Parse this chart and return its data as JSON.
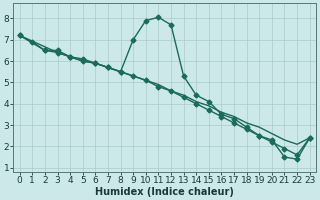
{
  "xlabel": "Humidex (Indice chaleur)",
  "bg_color": "#cce8e8",
  "grid_color": "#aacccc",
  "line_color": "#1a6b5a",
  "xlim": [
    -0.5,
    23.5
  ],
  "ylim": [
    0.8,
    8.7
  ],
  "yticks": [
    1,
    2,
    3,
    4,
    5,
    6,
    7,
    8
  ],
  "xticks": [
    0,
    1,
    2,
    3,
    4,
    5,
    6,
    7,
    8,
    9,
    10,
    11,
    12,
    13,
    14,
    15,
    16,
    17,
    18,
    19,
    20,
    21,
    22,
    23
  ],
  "series": [
    {
      "x": [
        0,
        1,
        2,
        3,
        4,
        5,
        6,
        7,
        8,
        9,
        10,
        11,
        12,
        13,
        14,
        15,
        16,
        17,
        18,
        19,
        20,
        21,
        22,
        23
      ],
      "y": [
        7.2,
        6.9,
        6.5,
        6.5,
        6.2,
        6.1,
        5.9,
        5.7,
        5.5,
        7.0,
        7.9,
        8.05,
        7.7,
        5.3,
        4.4,
        4.1,
        3.5,
        3.3,
        2.9,
        2.5,
        2.3,
        1.5,
        1.4,
        2.4
      ],
      "marker": true
    },
    {
      "x": [
        0,
        3,
        4,
        5,
        6,
        7,
        8,
        9,
        10,
        11,
        12,
        13,
        14,
        15,
        16,
        17,
        18,
        19,
        20,
        21,
        22,
        23
      ],
      "y": [
        7.2,
        6.4,
        6.2,
        6.0,
        5.9,
        5.7,
        5.5,
        5.3,
        5.1,
        4.9,
        4.6,
        4.4,
        4.1,
        3.9,
        3.6,
        3.4,
        3.1,
        2.9,
        2.6,
        2.3,
        2.1,
        2.4
      ],
      "marker": false
    },
    {
      "x": [
        0,
        2,
        3,
        4,
        5,
        6,
        7,
        8,
        9,
        10,
        11,
        12,
        13,
        14,
        15,
        16,
        17,
        18,
        19,
        20,
        21,
        22,
        23
      ],
      "y": [
        7.2,
        6.5,
        6.4,
        6.2,
        6.0,
        5.9,
        5.7,
        5.5,
        5.3,
        5.1,
        4.8,
        4.6,
        4.3,
        4.0,
        3.7,
        3.4,
        3.1,
        2.8,
        2.5,
        2.2,
        1.9,
        1.6,
        2.4
      ],
      "marker": true
    }
  ],
  "font_size": 6.5
}
